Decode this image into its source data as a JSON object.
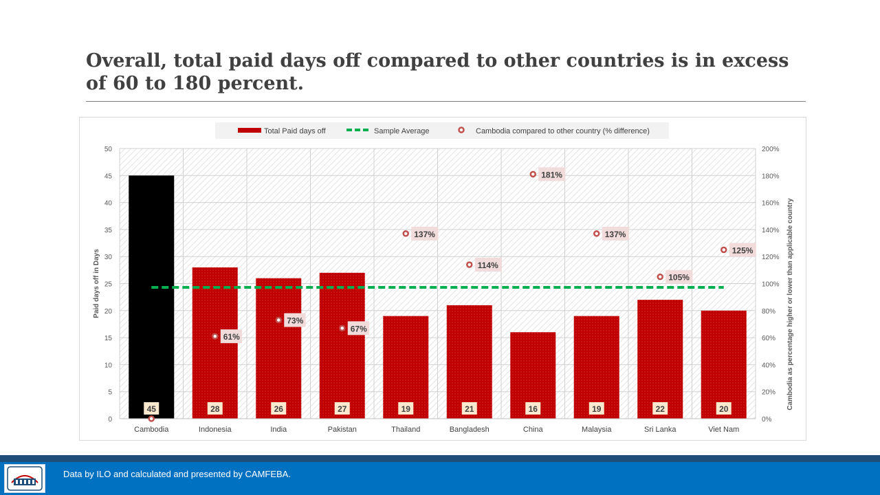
{
  "slide": {
    "title": "Overall, total paid days off compared to other countries is in excess of 60 to 180 percent.",
    "footer_text": "Data by ILO and calculated and presented by CAMFEBA."
  },
  "colors": {
    "bar_red": "#c00000",
    "bar_highlight": "#000000",
    "average_line": "#00b050",
    "marker": "#c0504d",
    "label_box": "#f2dcdb",
    "footer_bar": "#0070c0",
    "footer_stripe": "#1f4e79"
  },
  "chart_data": {
    "type": "bar",
    "categories": [
      "Cambodia",
      "Indonesia",
      "India",
      "Pakistan",
      "Thailand",
      "Bangladesh",
      "China",
      "Malaysia",
      "Sri Lanka",
      "Viet Nam"
    ],
    "series": [
      {
        "name": "Total Paid days off",
        "type": "bar",
        "axis": "left",
        "values": [
          45,
          28,
          26,
          27,
          19,
          21,
          16,
          19,
          22,
          20
        ],
        "data_labels": [
          "45",
          "28",
          "26",
          "27",
          "19",
          "21",
          "16",
          "19",
          "22",
          "20"
        ]
      },
      {
        "name": "Sample Average",
        "type": "line",
        "axis": "left",
        "style": "dashed",
        "values": [
          24.3,
          24.3,
          24.3,
          24.3,
          24.3,
          24.3,
          24.3,
          24.3,
          24.3,
          24.3
        ]
      },
      {
        "name": "Cambodia compared to other country (% difference)",
        "type": "scatter",
        "axis": "right",
        "values": [
          0,
          61,
          73,
          67,
          137,
          114,
          181,
          137,
          105,
          125
        ],
        "data_labels": [
          "",
          "61%",
          "73%",
          "67%",
          "137%",
          "114%",
          "181%",
          "137%",
          "105%",
          "125%"
        ]
      }
    ],
    "ylabel": "Paid days off in Days",
    "y2label": "Cambodia as percentage higher or lower than applicable country",
    "ylim": [
      0,
      50
    ],
    "yticks": [
      "0",
      "5",
      "10",
      "15",
      "20",
      "25",
      "30",
      "35",
      "40",
      "45",
      "50"
    ],
    "y2lim": [
      0,
      200
    ],
    "y2ticks": [
      "0%",
      "20%",
      "40%",
      "60%",
      "80%",
      "100%",
      "120%",
      "140%",
      "160%",
      "180%",
      "200%"
    ],
    "highlight_category": "Cambodia",
    "grid": true,
    "legend_position": "top"
  }
}
